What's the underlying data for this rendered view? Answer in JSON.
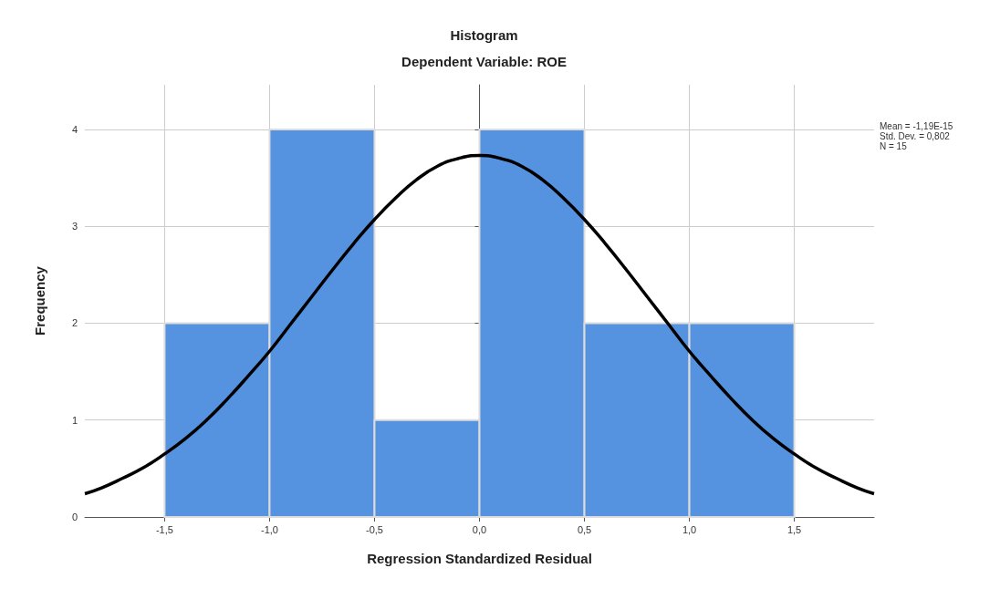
{
  "chart_data": {
    "type": "histogram",
    "title": "Histogram",
    "subtitle": "Dependent Variable: ROE",
    "xlabel": "Regression Standardized Residual",
    "ylabel": "Frequency",
    "annotations": [
      "Mean = -1,19E-15",
      "Std. Dev. = 0,802",
      "N = 15"
    ],
    "series": [
      {
        "color": "#5592e0",
        "bins": [
          -1.5,
          -1.0,
          -0.5,
          0.0,
          0.5,
          1.0,
          1.5
        ],
        "values": [
          2,
          4,
          1,
          4,
          2,
          2
        ]
      },
      {
        "type": "line",
        "color": "#000000",
        "marker": "none",
        "x": [
          -1.88,
          -1.8,
          -1.7,
          -1.6,
          -1.5,
          -1.4,
          -1.3,
          -1.2,
          -1.1,
          -1.0,
          -0.9,
          -0.8,
          -0.7,
          -0.6,
          -0.5,
          -0.4,
          -0.3,
          -0.2,
          -0.1,
          0.0,
          0.1,
          0.2,
          0.3,
          0.4,
          0.5,
          0.6,
          0.7,
          0.8,
          0.9,
          1.0,
          1.1,
          1.2,
          1.3,
          1.4,
          1.5,
          1.6,
          1.7,
          1.8,
          1.88
        ],
        "values": [
          0.24,
          0.3,
          0.4,
          0.51,
          0.65,
          0.81,
          1.0,
          1.22,
          1.46,
          1.71,
          1.99,
          2.27,
          2.55,
          2.82,
          3.07,
          3.29,
          3.48,
          3.62,
          3.7,
          3.73,
          3.7,
          3.62,
          3.48,
          3.29,
          3.07,
          2.82,
          2.55,
          2.27,
          1.99,
          1.71,
          1.46,
          1.22,
          1.0,
          0.81,
          0.65,
          0.51,
          0.4,
          0.3,
          0.24
        ]
      }
    ],
    "xlim": [
      -1.88,
      1.88
    ],
    "xticks": [
      {
        "value": -1.5,
        "label": "-1,5"
      },
      {
        "value": -1.0,
        "label": "-1,0"
      },
      {
        "value": -0.5,
        "label": "-0,5"
      },
      {
        "value": 0.0,
        "label": "0,0"
      },
      {
        "value": 0.5,
        "label": "0,5"
      },
      {
        "value": 1.0,
        "label": "1,0"
      },
      {
        "value": 1.5,
        "label": "1,5"
      }
    ],
    "ylim": [
      0,
      4.46
    ],
    "yticks": [
      0,
      1,
      2,
      3,
      4
    ],
    "grid": true
  }
}
